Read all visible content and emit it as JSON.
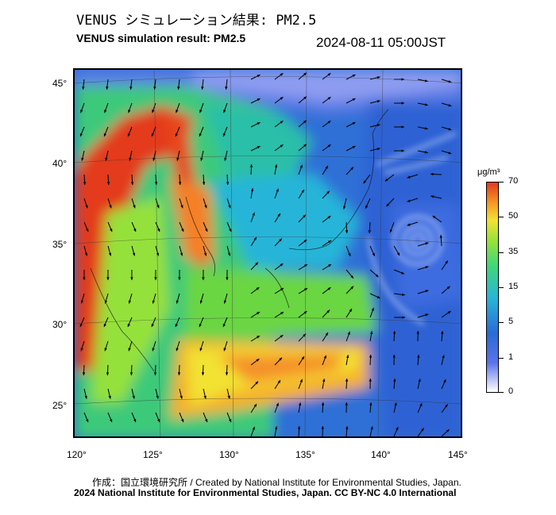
{
  "title": {
    "japanese": "VENUS シミュレーション結果: PM2.5",
    "english": "VENUS simulation result: PM2.5",
    "timestamp": "2024-08-11 05:00JST"
  },
  "map": {
    "variable": "PM2.5",
    "lat_labels": [
      "45°",
      "40°",
      "35°",
      "30°",
      "25°"
    ],
    "lon_labels": [
      "120°",
      "125°",
      "130°",
      "135°",
      "140°",
      "145°"
    ],
    "lat_range": [
      23,
      46
    ],
    "lon_range": [
      120,
      145
    ],
    "features": [
      "wind vectors",
      "typhoon vortex east of Japan"
    ]
  },
  "colorbar": {
    "unit": "μg/m³",
    "labels": [
      "70",
      "50",
      "35",
      "15",
      "5",
      "1",
      "0"
    ],
    "colors": [
      "#ffffff",
      "#5b73e8",
      "#2a6ad8",
      "#29b6d8",
      "#3fd67a",
      "#96e23a",
      "#f2e233",
      "#f59a25",
      "#e33a1d"
    ]
  },
  "credits": {
    "line1": "作成：国立環境研究所 / Created by National Institute for Environmental Studies, Japan.",
    "line2": "2024 National Institute for Environmental Studies, Japan. CC BY-NC 4.0 International"
  }
}
